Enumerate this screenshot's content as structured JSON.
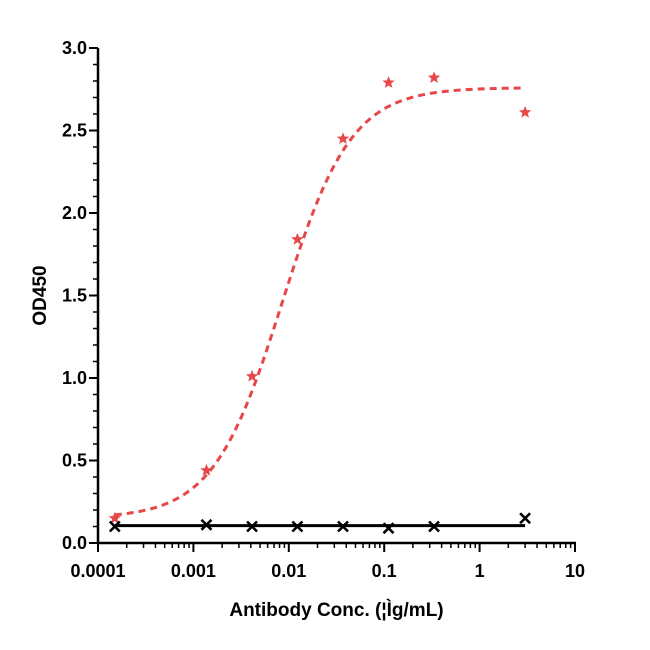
{
  "chart_data": {
    "type": "scatter",
    "title": "",
    "xlabel": "Antibody Conc. (¦Ìg/mL)",
    "ylabel": "OD450",
    "x_scale": "log",
    "xlim": [
      0.0001,
      10
    ],
    "ylim": [
      0,
      3.0
    ],
    "x_ticks": [
      "0.0001",
      "0.001",
      "0.01",
      "0.1",
      "1",
      "10"
    ],
    "y_ticks": [
      "0.0",
      "0.5",
      "1.0",
      "1.5",
      "2.0",
      "2.5",
      "3.0"
    ],
    "grid": false,
    "legend": "none",
    "series": [
      {
        "marker": "star",
        "color": "#e8474a",
        "line_style": "dashed",
        "x": [
          0.00015,
          0.00137,
          0.00412,
          0.0123,
          0.037,
          0.111,
          0.333,
          3.0
        ],
        "y": [
          0.15,
          0.44,
          1.01,
          1.84,
          2.45,
          2.79,
          2.82,
          2.61
        ],
        "fit": {
          "model": "4PL",
          "bottom": 0.15,
          "top": 2.76,
          "ec50": 0.0085,
          "hill": 1.2
        }
      },
      {
        "marker": "x",
        "color": "#000000",
        "line_style": "solid",
        "x": [
          0.00015,
          0.00137,
          0.00412,
          0.0123,
          0.037,
          0.111,
          0.333,
          3.0
        ],
        "y": [
          0.1,
          0.11,
          0.1,
          0.1,
          0.1,
          0.09,
          0.1,
          0.15
        ],
        "fit": {
          "model": "flat",
          "value": 0.105
        }
      }
    ]
  }
}
